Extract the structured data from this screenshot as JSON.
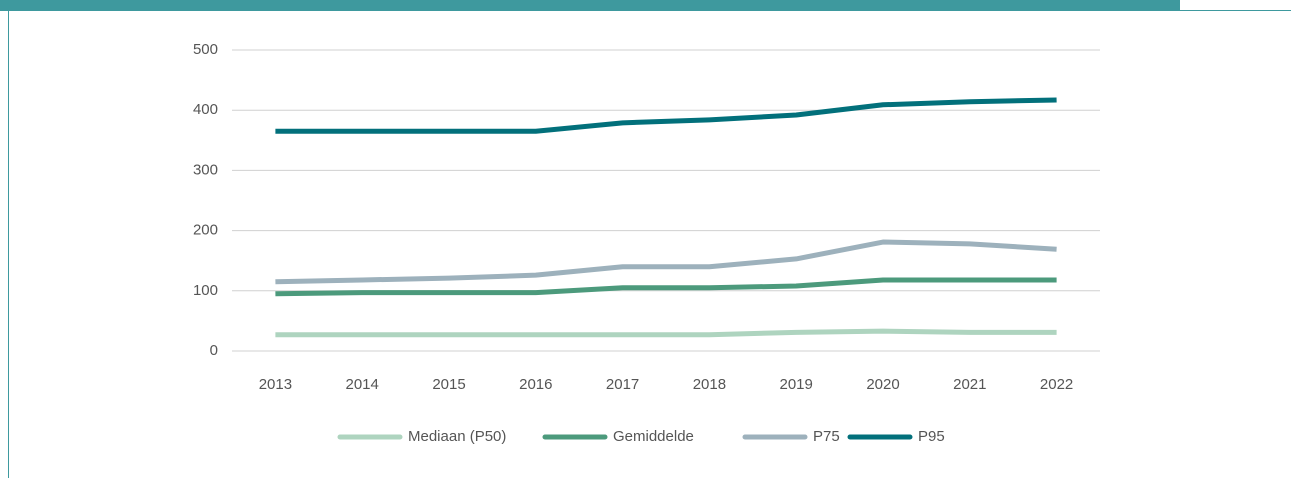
{
  "chart_data": {
    "type": "line",
    "categories": [
      "2013",
      "2014",
      "2015",
      "2016",
      "2017",
      "2018",
      "2019",
      "2020",
      "2021",
      "2022"
    ],
    "series": [
      {
        "name": "Mediaan (P50)",
        "color": "#aed4bf",
        "values": [
          27,
          27,
          27,
          27,
          27,
          27,
          31,
          33,
          31,
          31
        ]
      },
      {
        "name": "Gemiddelde",
        "color": "#4c9a7c",
        "values": [
          95,
          97,
          97,
          97,
          105,
          105,
          108,
          118,
          118,
          118
        ]
      },
      {
        "name": "P75",
        "color": "#9db1bc",
        "values": [
          115,
          118,
          121,
          126,
          140,
          140,
          153,
          181,
          178,
          169
        ]
      },
      {
        "name": "P95",
        "color": "#02707b",
        "values": [
          365,
          365,
          365,
          365,
          379,
          384,
          392,
          409,
          414,
          417
        ]
      }
    ],
    "ylim": [
      0,
      500
    ],
    "yticks": [
      0,
      100,
      200,
      300,
      400,
      500
    ],
    "grid": true,
    "legend": "bottom"
  }
}
